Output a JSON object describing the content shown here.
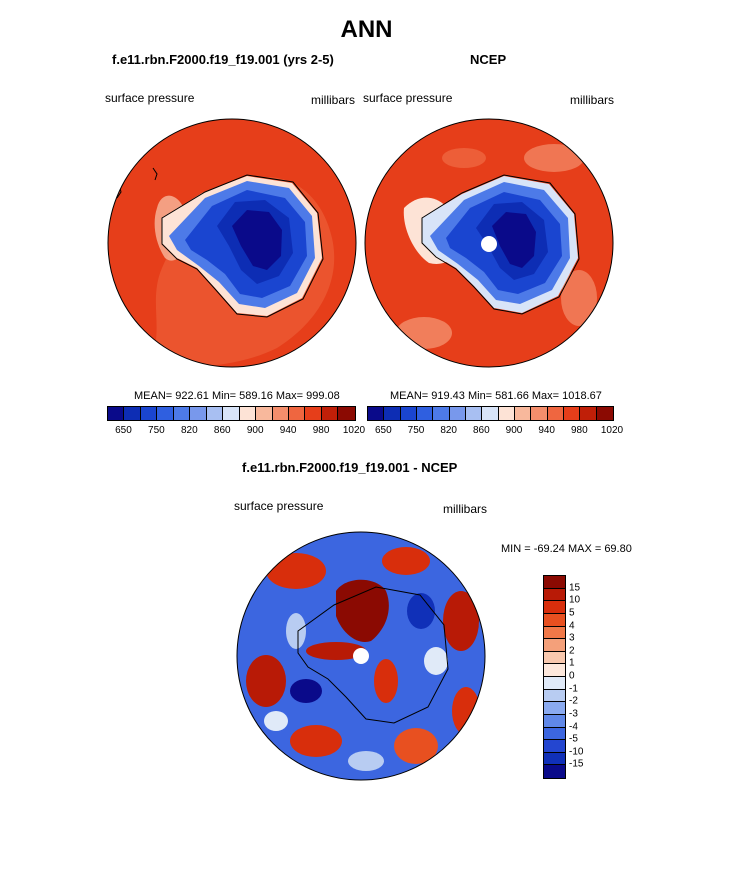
{
  "title": "ANN",
  "panels": [
    {
      "title": "f.e11.rbn.F2000.f19_f19.001 (yrs 2-5)",
      "left_label": "surface pressure",
      "right_label": "millibars",
      "stats": "MEAN= 922.61  Min= 589.16  Max= 999.08"
    },
    {
      "title": "NCEP",
      "left_label": "surface pressure",
      "right_label": "millibars",
      "stats": "MEAN= 919.43  Min= 581.66  Max= 1018.67"
    }
  ],
  "diff_panel": {
    "title": "f.e11.rbn.F2000.f19_f19.001 - NCEP",
    "left_label": "surface pressure",
    "right_label": "millibars",
    "stats": "MIN = -69.24 MAX =  69.80"
  },
  "colorbar_abs": {
    "colors": [
      "#0a0a8a",
      "#0d2db4",
      "#1a45d0",
      "#2f5fe0",
      "#4d7ae8",
      "#7898ec",
      "#a8bff2",
      "#d8e4f8",
      "#fde3d6",
      "#f8b89c",
      "#f48e6c",
      "#ef6640",
      "#e63e1a",
      "#c01f08",
      "#8b0a02"
    ],
    "labels": [
      "650",
      "750",
      "820",
      "860",
      "900",
      "940",
      "980",
      "1020"
    ]
  },
  "colorbar_diff": {
    "colors": [
      "#8b0a02",
      "#b81a06",
      "#d82e0c",
      "#e85020",
      "#f07848",
      "#f4a07a",
      "#f8c8ae",
      "#fde8dc",
      "#e0eaf8",
      "#b8ccf2",
      "#8aaaf0",
      "#6088e8",
      "#3c66e0",
      "#2446d0",
      "#1030b8",
      "#0a0a8a"
    ],
    "labels": [
      "15",
      "10",
      "5",
      "4",
      "3",
      "2",
      "1",
      "0",
      "-1",
      "-2",
      "-3",
      "-4",
      "-5",
      "-10",
      "-15"
    ]
  },
  "colors": {
    "ocean_high": "#e63e1a",
    "ice_low": "#0a0a8a",
    "coast": "#000000"
  }
}
